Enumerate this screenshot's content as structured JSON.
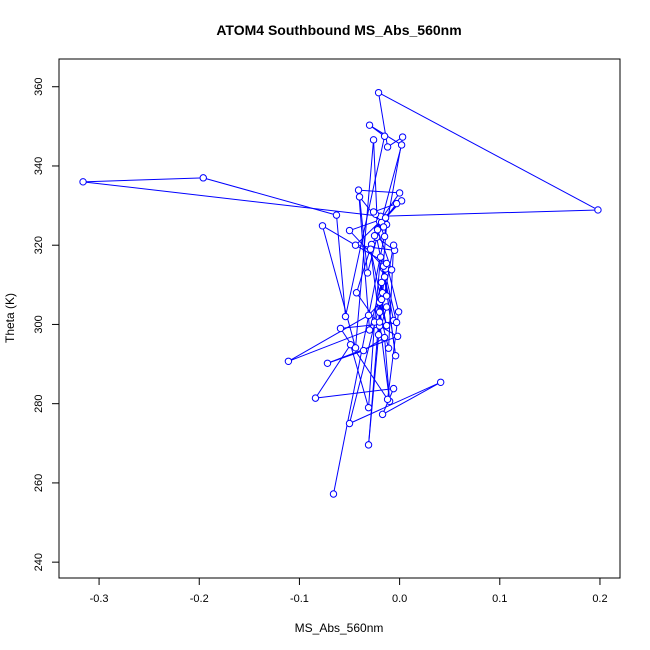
{
  "chart_data": {
    "type": "line",
    "title": "ATOM4 Southbound MS_Abs_560nm",
    "xlabel": "MS_Abs_560nm",
    "ylabel": "Theta (K)",
    "xlim": [
      -0.34,
      0.22
    ],
    "ylim": [
      236,
      367
    ],
    "x_ticks": [
      -0.3,
      -0.2,
      -0.1,
      0.0,
      0.1,
      0.2
    ],
    "x_tick_labels": [
      "-0.3",
      "-0.2",
      "-0.1",
      "0.0",
      "0.1",
      "0.2"
    ],
    "y_ticks": [
      240,
      260,
      280,
      300,
      320,
      340,
      360
    ],
    "y_tick_labels": [
      "240",
      "260",
      "280",
      "300",
      "320",
      "340",
      "360"
    ],
    "grid": false,
    "marker": "open-circle",
    "colors": {
      "series": "#0000ff",
      "frame": "#000000"
    },
    "series": [
      {
        "x": [
          -0.066,
          -0.013,
          -0.031,
          -0.017,
          -0.05,
          0.041,
          -0.017,
          -0.006,
          -0.084,
          -0.049,
          -0.031,
          -0.025,
          -0.019,
          -0.016,
          -0.004,
          -0.015,
          -0.013,
          -0.031,
          -0.111,
          -0.006,
          -0.023,
          -0.028,
          -0.043,
          -0.02,
          -0.002,
          -0.072,
          -0.036,
          -0.015,
          -0.01,
          -0.029,
          -0.013,
          -0.02,
          -0.018,
          -0.03,
          -0.041,
          0.0,
          -0.02,
          -0.025,
          -0.005,
          -0.044,
          0.002,
          -0.018,
          -0.016,
          -0.04,
          -0.032,
          0.002,
          -0.03,
          -0.015,
          -0.054,
          -0.063,
          -0.196,
          -0.316,
          -0.019,
          0.198,
          -0.021,
          -0.012,
          0.003,
          -0.015,
          -0.024,
          -0.026,
          -0.003,
          -0.022,
          -0.014,
          -0.05,
          -0.014,
          -0.018,
          -0.02,
          -0.006,
          -0.011,
          -0.02,
          -0.013,
          -0.021,
          -0.016,
          -0.003,
          -0.059,
          -0.012,
          -0.001,
          -0.013,
          -0.077,
          -0.044,
          -0.026,
          -0.022,
          -0.008
        ],
        "y": [
          257.2,
          325.2,
          269.6,
          308.0,
          275.0,
          285.4,
          277.3,
          283.8,
          281.4,
          294.9,
          279.0,
          300.6,
          317.0,
          314.1,
          292.1,
          312.0,
          307.2,
          302.3,
          290.7,
          301.0,
          322.0,
          320.2,
          308.0,
          299.6,
          297.0,
          290.2,
          293.4,
          296.7,
          280.6,
          319.0,
          299.7,
          305.6,
          310.6,
          298.6,
          333.9,
          333.2,
          326.0,
          322.4,
          318.7,
          320.0,
          331.2,
          325.8,
          324.6,
          332.2,
          313.0,
          345.3,
          350.3,
          347.5,
          302.0,
          327.6,
          337.0,
          336.0,
          327.3,
          328.9,
          358.5,
          344.8,
          347.3,
          322.2,
          327.8,
          328.4,
          330.5,
          324.2,
          326.9,
          323.7,
          314.0,
          306.3,
          300.6,
          320.0,
          294.0,
          303.1,
          304.4,
          297.4,
          314.7,
          300.5,
          299.0,
          281.1,
          303.2,
          315.4,
          324.9,
          294.1,
          346.6,
          323.9,
          313.8
        ]
      }
    ]
  }
}
